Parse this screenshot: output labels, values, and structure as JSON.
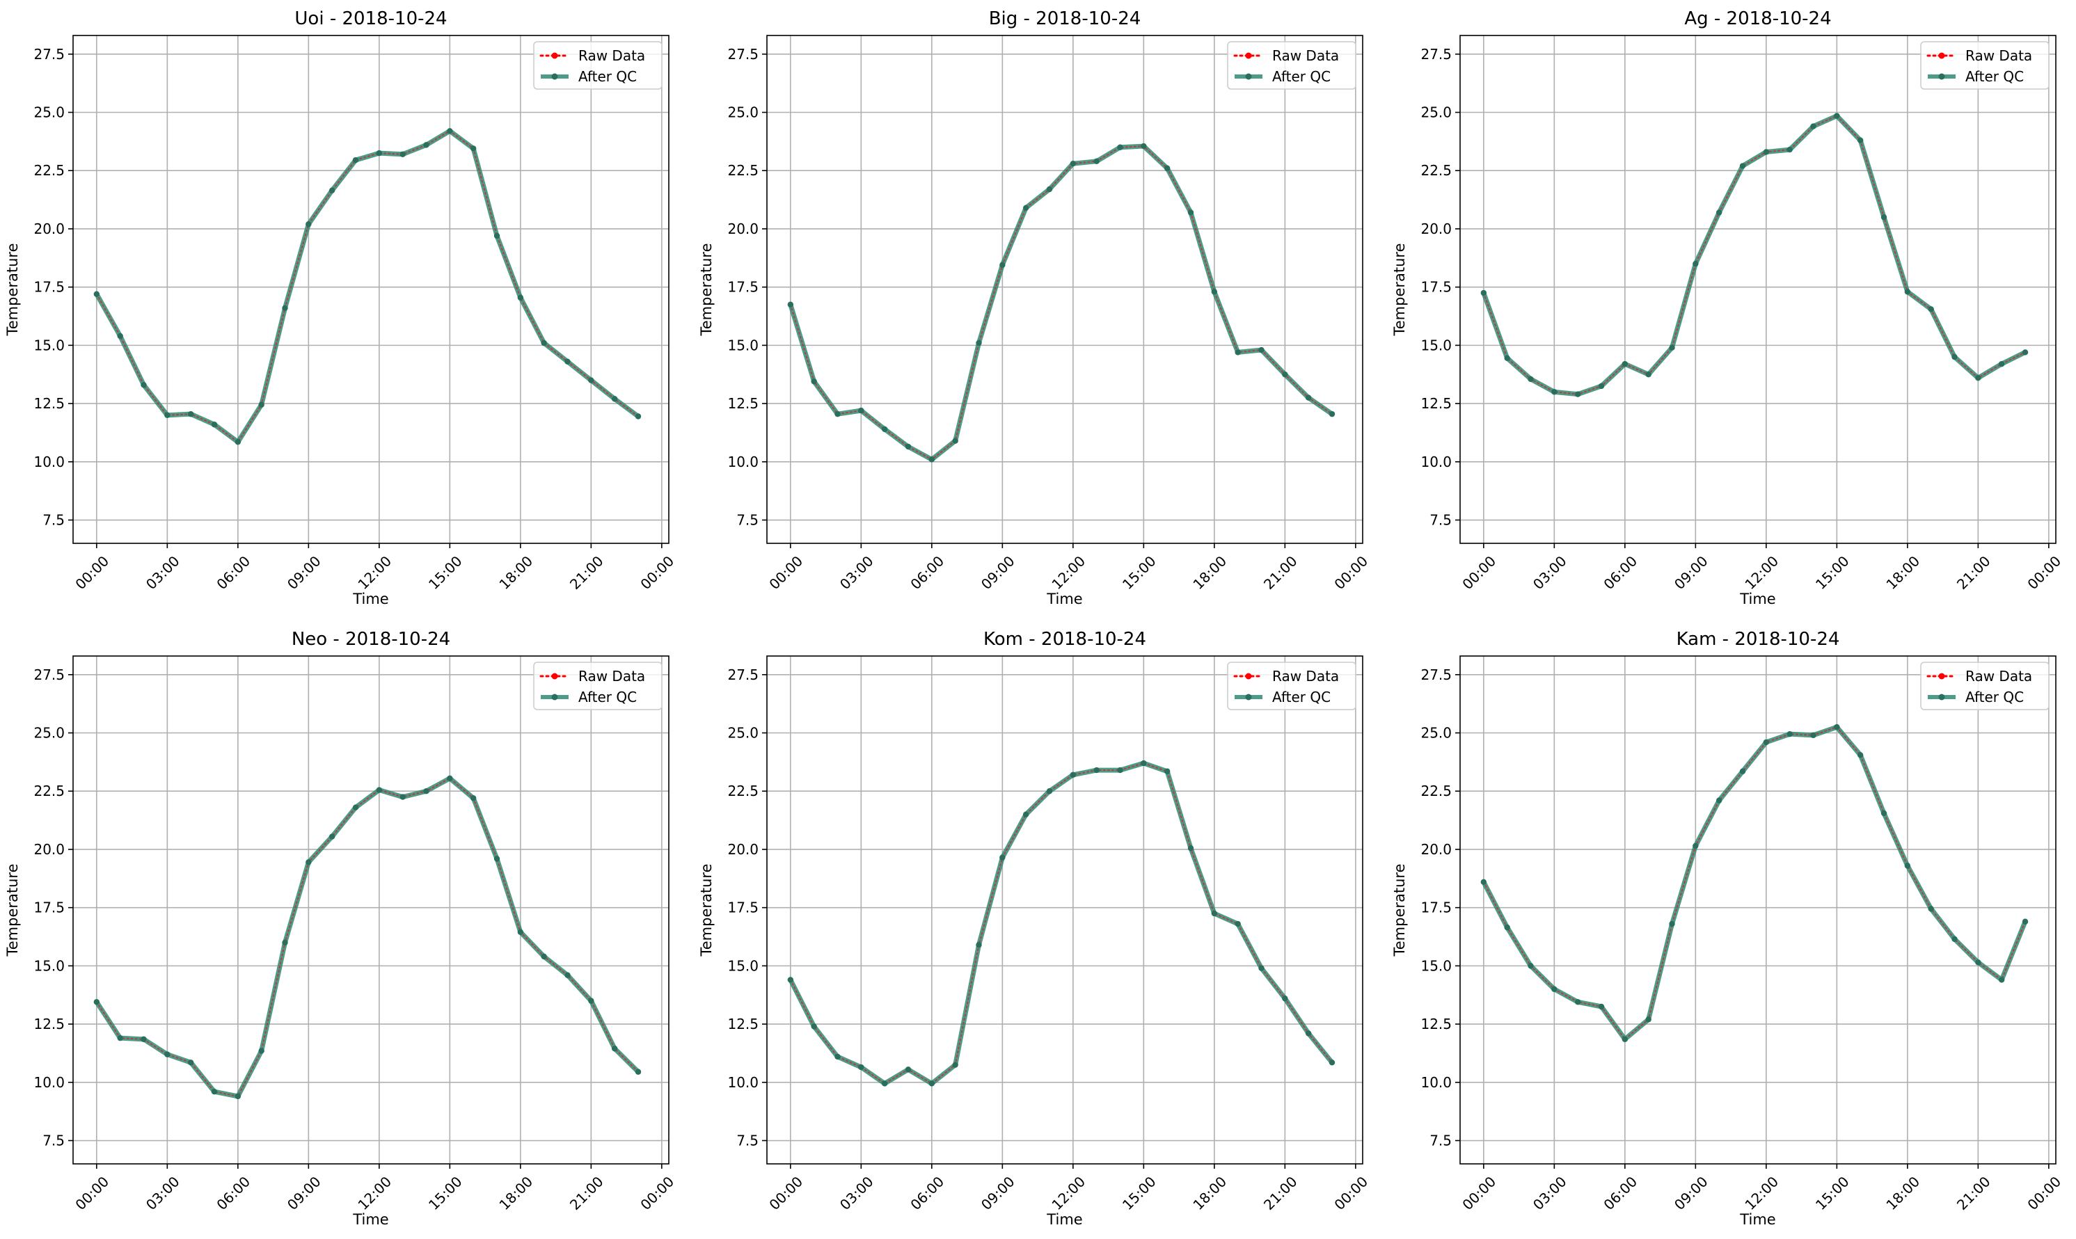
{
  "figure": {
    "background": "#ffffff"
  },
  "chart_data": [
    {
      "type": "line",
      "title": "Uoi - 2018-10-24",
      "xlabel": "Time",
      "ylabel": "Temperature",
      "ylim": [
        6.5,
        28.3
      ],
      "yticks": [
        "7.5",
        "10.0",
        "12.5",
        "15.0",
        "17.5",
        "20.0",
        "22.5",
        "25.0",
        "27.5"
      ],
      "xticks": [
        "00:00",
        "03:00",
        "06:00",
        "09:00",
        "12:00",
        "15:00",
        "18:00",
        "21:00",
        "00:00"
      ],
      "grid": true,
      "legend": "top-right",
      "x_hours": [
        0,
        1,
        2,
        3,
        4,
        5,
        6,
        7,
        8,
        9,
        10,
        11,
        12,
        13,
        14,
        15,
        16,
        17,
        18,
        19,
        20,
        21,
        22,
        23
      ],
      "series": [
        {
          "name": "Raw Data",
          "color": "#ff0000",
          "style": "dotted",
          "values": [
            17.2,
            15.4,
            13.3,
            12.0,
            12.05,
            11.6,
            10.85,
            12.45,
            16.6,
            20.2,
            21.65,
            22.95,
            23.25,
            23.2,
            23.6,
            24.2,
            23.45,
            19.7,
            17.05,
            15.1,
            14.3,
            13.5,
            12.7,
            11.95
          ]
        },
        {
          "name": "After QC",
          "color": "#2e8b75",
          "style": "solid",
          "values": [
            17.2,
            15.4,
            13.3,
            12.0,
            12.05,
            11.6,
            10.85,
            12.45,
            16.6,
            20.2,
            21.65,
            22.95,
            23.25,
            23.2,
            23.6,
            24.2,
            23.45,
            19.7,
            17.05,
            15.1,
            14.3,
            13.5,
            12.7,
            11.95
          ]
        }
      ]
    },
    {
      "type": "line",
      "title": "Big - 2018-10-24",
      "xlabel": "Time",
      "ylabel": "Temperature",
      "ylim": [
        6.5,
        28.3
      ],
      "yticks": [
        "7.5",
        "10.0",
        "12.5",
        "15.0",
        "17.5",
        "20.0",
        "22.5",
        "25.0",
        "27.5"
      ],
      "xticks": [
        "00:00",
        "03:00",
        "06:00",
        "09:00",
        "12:00",
        "15:00",
        "18:00",
        "21:00",
        "00:00"
      ],
      "grid": true,
      "legend": "top-right",
      "x_hours": [
        0,
        1,
        2,
        3,
        4,
        5,
        6,
        7,
        8,
        9,
        10,
        11,
        12,
        13,
        14,
        15,
        16,
        17,
        18,
        19,
        20,
        21,
        22,
        23
      ],
      "series": [
        {
          "name": "Raw Data",
          "color": "#ff0000",
          "style": "dotted",
          "values": [
            16.75,
            13.45,
            12.05,
            12.2,
            11.4,
            10.65,
            10.1,
            10.9,
            15.1,
            18.45,
            20.9,
            21.7,
            22.8,
            22.9,
            23.5,
            23.55,
            22.6,
            20.7,
            17.3,
            14.7,
            14.8,
            13.75,
            12.75,
            12.05
          ]
        },
        {
          "name": "After QC",
          "color": "#2e8b75",
          "style": "solid",
          "values": [
            16.75,
            13.45,
            12.05,
            12.2,
            11.4,
            10.65,
            10.1,
            10.9,
            15.1,
            18.45,
            20.9,
            21.7,
            22.8,
            22.9,
            23.5,
            23.55,
            22.6,
            20.7,
            17.3,
            14.7,
            14.8,
            13.75,
            12.75,
            12.05
          ]
        }
      ]
    },
    {
      "type": "line",
      "title": "Ag - 2018-10-24",
      "xlabel": "Time",
      "ylabel": "Temperature",
      "ylim": [
        6.5,
        28.3
      ],
      "yticks": [
        "7.5",
        "10.0",
        "12.5",
        "15.0",
        "17.5",
        "20.0",
        "22.5",
        "25.0",
        "27.5"
      ],
      "xticks": [
        "00:00",
        "03:00",
        "06:00",
        "09:00",
        "12:00",
        "15:00",
        "18:00",
        "21:00",
        "00:00"
      ],
      "grid": true,
      "legend": "top-right",
      "x_hours": [
        0,
        1,
        2,
        3,
        4,
        5,
        6,
        7,
        8,
        9,
        10,
        11,
        12,
        13,
        14,
        15,
        16,
        17,
        18,
        19,
        20,
        21,
        22,
        23
      ],
      "series": [
        {
          "name": "Raw Data",
          "color": "#ff0000",
          "style": "dotted",
          "values": [
            17.25,
            14.45,
            13.55,
            13.0,
            12.9,
            13.25,
            14.2,
            13.75,
            14.9,
            18.5,
            20.7,
            22.7,
            23.3,
            23.4,
            24.4,
            24.85,
            23.8,
            20.5,
            17.3,
            16.55,
            14.5,
            13.6,
            14.2,
            14.7
          ]
        },
        {
          "name": "After QC",
          "color": "#2e8b75",
          "style": "solid",
          "values": [
            17.25,
            14.45,
            13.55,
            13.0,
            12.9,
            13.25,
            14.2,
            13.75,
            14.9,
            18.5,
            20.7,
            22.7,
            23.3,
            23.4,
            24.4,
            24.85,
            23.8,
            20.5,
            17.3,
            16.55,
            14.5,
            13.6,
            14.2,
            14.7
          ]
        }
      ]
    },
    {
      "type": "line",
      "title": "Neo - 2018-10-24",
      "xlabel": "Time",
      "ylabel": "Temperature",
      "ylim": [
        6.5,
        28.3
      ],
      "yticks": [
        "7.5",
        "10.0",
        "12.5",
        "15.0",
        "17.5",
        "20.0",
        "22.5",
        "25.0",
        "27.5"
      ],
      "xticks": [
        "00:00",
        "03:00",
        "06:00",
        "09:00",
        "12:00",
        "15:00",
        "18:00",
        "21:00",
        "00:00"
      ],
      "grid": true,
      "legend": "top-right",
      "x_hours": [
        0,
        1,
        2,
        3,
        4,
        5,
        6,
        7,
        8,
        9,
        10,
        11,
        12,
        13,
        14,
        15,
        16,
        17,
        18,
        19,
        20,
        21,
        22,
        23
      ],
      "series": [
        {
          "name": "Raw Data",
          "color": "#ff0000",
          "style": "dotted",
          "values": [
            13.45,
            11.9,
            11.85,
            11.2,
            10.85,
            9.6,
            9.4,
            11.35,
            16.0,
            19.45,
            20.55,
            21.8,
            22.55,
            22.25,
            22.5,
            23.05,
            22.2,
            19.6,
            16.45,
            15.4,
            14.6,
            13.5,
            11.45,
            10.45
          ]
        },
        {
          "name": "After QC",
          "color": "#2e8b75",
          "style": "solid",
          "values": [
            13.45,
            11.9,
            11.85,
            11.2,
            10.85,
            9.6,
            9.4,
            11.35,
            16.0,
            19.45,
            20.55,
            21.8,
            22.55,
            22.25,
            22.5,
            23.05,
            22.2,
            19.6,
            16.45,
            15.4,
            14.6,
            13.5,
            11.45,
            10.45
          ]
        }
      ]
    },
    {
      "type": "line",
      "title": "Kom - 2018-10-24",
      "xlabel": "Time",
      "ylabel": "Temperature",
      "ylim": [
        6.5,
        28.3
      ],
      "yticks": [
        "7.5",
        "10.0",
        "12.5",
        "15.0",
        "17.5",
        "20.0",
        "22.5",
        "25.0",
        "27.5"
      ],
      "xticks": [
        "00:00",
        "03:00",
        "06:00",
        "09:00",
        "12:00",
        "15:00",
        "18:00",
        "21:00",
        "00:00"
      ],
      "grid": true,
      "legend": "top-right",
      "x_hours": [
        0,
        1,
        2,
        3,
        4,
        5,
        6,
        7,
        8,
        9,
        10,
        11,
        12,
        13,
        14,
        15,
        16,
        17,
        18,
        19,
        20,
        21,
        22,
        23
      ],
      "series": [
        {
          "name": "Raw Data",
          "color": "#ff0000",
          "style": "dotted",
          "values": [
            14.4,
            12.4,
            11.1,
            10.65,
            9.95,
            10.55,
            9.95,
            10.75,
            15.9,
            19.65,
            21.5,
            22.5,
            23.2,
            23.4,
            23.4,
            23.7,
            23.35,
            20.05,
            17.25,
            16.8,
            14.9,
            13.6,
            12.1,
            10.85
          ]
        },
        {
          "name": "After QC",
          "color": "#2e8b75",
          "style": "solid",
          "values": [
            14.4,
            12.4,
            11.1,
            10.65,
            9.95,
            10.55,
            9.95,
            10.75,
            15.9,
            19.65,
            21.5,
            22.5,
            23.2,
            23.4,
            23.4,
            23.7,
            23.35,
            20.05,
            17.25,
            16.8,
            14.9,
            13.6,
            12.1,
            10.85
          ]
        }
      ]
    },
    {
      "type": "line",
      "title": "Kam - 2018-10-24",
      "xlabel": "Time",
      "ylabel": "Temperature",
      "ylim": [
        6.5,
        28.3
      ],
      "yticks": [
        "7.5",
        "10.0",
        "12.5",
        "15.0",
        "17.5",
        "20.0",
        "22.5",
        "25.0",
        "27.5"
      ],
      "xticks": [
        "00:00",
        "03:00",
        "06:00",
        "09:00",
        "12:00",
        "15:00",
        "18:00",
        "21:00",
        "00:00"
      ],
      "grid": true,
      "legend": "top-right",
      "x_hours": [
        0,
        1,
        2,
        3,
        4,
        5,
        6,
        7,
        8,
        9,
        10,
        11,
        12,
        13,
        14,
        15,
        16,
        17,
        18,
        19,
        20,
        21,
        22,
        23
      ],
      "series": [
        {
          "name": "Raw Data",
          "color": "#ff0000",
          "style": "dotted",
          "values": [
            18.6,
            16.65,
            15.0,
            14.0,
            13.45,
            13.25,
            11.85,
            12.7,
            16.8,
            20.15,
            22.1,
            23.35,
            24.6,
            24.95,
            24.9,
            25.25,
            24.05,
            21.55,
            19.3,
            17.45,
            16.15,
            15.15,
            14.4,
            16.9
          ]
        },
        {
          "name": "After QC",
          "color": "#2e8b75",
          "style": "solid",
          "values": [
            18.6,
            16.65,
            15.0,
            14.0,
            13.45,
            13.25,
            11.85,
            12.7,
            16.8,
            20.15,
            22.1,
            23.35,
            24.6,
            24.95,
            24.9,
            25.25,
            24.05,
            21.55,
            19.3,
            17.45,
            16.15,
            15.15,
            14.4,
            16.9
          ]
        }
      ]
    }
  ]
}
